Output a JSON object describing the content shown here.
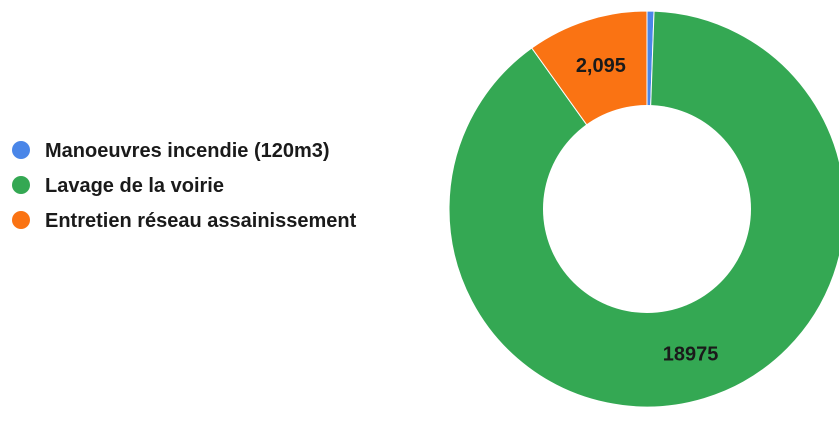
{
  "chart_data": {
    "type": "pie",
    "variant": "donut",
    "title": "",
    "legend_position": "left",
    "slices": [
      {
        "name": "Manoeuvres incendie (120m3)",
        "value": 120,
        "label": "",
        "color": "#4a86e8"
      },
      {
        "name": "Lavage de la voirie",
        "value": 18975,
        "label": "18975",
        "color": "#34a853"
      },
      {
        "name": "Entretien réseau assainissement",
        "value": 2095,
        "label": "2,095",
        "color": "#fa7313"
      }
    ]
  }
}
